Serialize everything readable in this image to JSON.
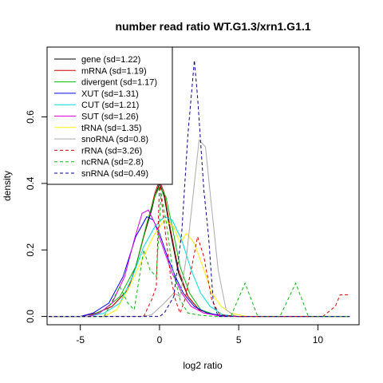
{
  "chart_data": {
    "type": "line",
    "title": "number read ratio WT.G1.3/xrn1.G1.1",
    "xlabel": "log2 ratio",
    "ylabel": "density",
    "xlim": [
      -7.1,
      12.6
    ],
    "ylim": [
      -0.025,
      0.81
    ],
    "xticks": [
      -5,
      0,
      5,
      10
    ],
    "yticks": [
      0.0,
      0.2,
      0.4,
      0.6
    ],
    "grid": false,
    "legend_position": "top-left",
    "series": [
      {
        "name": "gene (sd=1.22)",
        "color": "#000000",
        "dash": "solid",
        "points": [
          [
            -7,
            0
          ],
          [
            -5,
            0
          ],
          [
            -4,
            0.01
          ],
          [
            -3,
            0.03
          ],
          [
            -2,
            0.08
          ],
          [
            -1.5,
            0.15
          ],
          [
            -1,
            0.24
          ],
          [
            -0.5,
            0.32
          ],
          [
            -0.3,
            0.36
          ],
          [
            0,
            0.4
          ],
          [
            0.3,
            0.36
          ],
          [
            0.7,
            0.25
          ],
          [
            1.2,
            0.13
          ],
          [
            1.8,
            0.06
          ],
          [
            2.5,
            0.02
          ],
          [
            3.5,
            0.004
          ],
          [
            5,
            0
          ],
          [
            7,
            0
          ],
          [
            12,
            0
          ]
        ]
      },
      {
        "name": "mRNA (sd=1.19)",
        "color": "#cc0000",
        "dash": "solid",
        "points": [
          [
            -7,
            0
          ],
          [
            -5,
            0
          ],
          [
            -4,
            0.01
          ],
          [
            -3,
            0.03
          ],
          [
            -2,
            0.08
          ],
          [
            -1.5,
            0.15
          ],
          [
            -1,
            0.24
          ],
          [
            -0.5,
            0.33
          ],
          [
            -0.3,
            0.37
          ],
          [
            0,
            0.41
          ],
          [
            0.3,
            0.37
          ],
          [
            0.7,
            0.26
          ],
          [
            1.2,
            0.14
          ],
          [
            1.8,
            0.06
          ],
          [
            2.5,
            0.02
          ],
          [
            3.5,
            0.004
          ],
          [
            5,
            0
          ],
          [
            7,
            0
          ],
          [
            12,
            0
          ]
        ]
      },
      {
        "name": "divergent (sd=1.17)",
        "color": "#00bb00",
        "dash": "solid",
        "points": [
          [
            -7,
            0
          ],
          [
            -4.5,
            0
          ],
          [
            -3.5,
            0.02
          ],
          [
            -2.5,
            0.06
          ],
          [
            -1.5,
            0.15
          ],
          [
            -0.8,
            0.28
          ],
          [
            -0.3,
            0.36
          ],
          [
            0,
            0.39
          ],
          [
            0.4,
            0.36
          ],
          [
            0.8,
            0.27
          ],
          [
            1.3,
            0.15
          ],
          [
            1.9,
            0.07
          ],
          [
            2.6,
            0.02
          ],
          [
            3.5,
            0.005
          ],
          [
            5,
            0
          ],
          [
            7,
            0
          ],
          [
            12,
            0
          ]
        ]
      },
      {
        "name": "XUT (sd=1.31)",
        "color": "#0000ee",
        "dash": "solid",
        "points": [
          [
            -7,
            0
          ],
          [
            -5,
            0
          ],
          [
            -4.2,
            0.01
          ],
          [
            -3.2,
            0.04
          ],
          [
            -2.3,
            0.12
          ],
          [
            -1.5,
            0.24
          ],
          [
            -0.8,
            0.3
          ],
          [
            -0.4,
            0.29
          ],
          [
            0,
            0.25
          ],
          [
            0.5,
            0.18
          ],
          [
            1,
            0.12
          ],
          [
            1.5,
            0.07
          ],
          [
            2.2,
            0.03
          ],
          [
            3,
            0.01
          ],
          [
            4,
            0.002
          ],
          [
            5,
            0
          ],
          [
            7,
            0
          ],
          [
            12,
            0
          ]
        ]
      },
      {
        "name": "CUT (sd=1.21)",
        "color": "#00dddd",
        "dash": "solid",
        "points": [
          [
            -7,
            0
          ],
          [
            -4.5,
            0
          ],
          [
            -3.5,
            0.01
          ],
          [
            -2.5,
            0.04
          ],
          [
            -1.7,
            0.12
          ],
          [
            -1,
            0.21
          ],
          [
            -0.3,
            0.27
          ],
          [
            0.3,
            0.3
          ],
          [
            0.8,
            0.29
          ],
          [
            1.4,
            0.23
          ],
          [
            2,
            0.14
          ],
          [
            2.6,
            0.07
          ],
          [
            3.2,
            0.03
          ],
          [
            4,
            0.005
          ],
          [
            5,
            0
          ],
          [
            7,
            0
          ],
          [
            12,
            0
          ]
        ]
      },
      {
        "name": "SUT (sd=1.26)",
        "color": "#dd00dd",
        "dash": "solid",
        "points": [
          [
            -7,
            0
          ],
          [
            -4.5,
            0
          ],
          [
            -3.8,
            0.01
          ],
          [
            -3,
            0.04
          ],
          [
            -2.2,
            0.12
          ],
          [
            -1.6,
            0.23
          ],
          [
            -1.1,
            0.31
          ],
          [
            -0.7,
            0.32
          ],
          [
            -0.3,
            0.28
          ],
          [
            0.2,
            0.21
          ],
          [
            0.8,
            0.13
          ],
          [
            1.4,
            0.07
          ],
          [
            2,
            0.03
          ],
          [
            2.8,
            0.01
          ],
          [
            4,
            0
          ],
          [
            7,
            0
          ],
          [
            12,
            0
          ]
        ]
      },
      {
        "name": "tRNA (sd=1.35)",
        "color": "#ffee00",
        "dash": "solid",
        "points": [
          [
            -7,
            0
          ],
          [
            -3.5,
            0
          ],
          [
            -2.7,
            0.02
          ],
          [
            -2,
            0.08
          ],
          [
            -1.2,
            0.16
          ],
          [
            -0.4,
            0.24
          ],
          [
            0.3,
            0.29
          ],
          [
            0.9,
            0.27
          ],
          [
            1.3,
            0.22
          ],
          [
            1.7,
            0.25
          ],
          [
            2.2,
            0.22
          ],
          [
            2.8,
            0.14
          ],
          [
            3.3,
            0.07
          ],
          [
            3.9,
            0.03
          ],
          [
            4.5,
            0.01
          ],
          [
            5.5,
            0
          ],
          [
            7,
            0
          ],
          [
            12,
            0
          ]
        ]
      },
      {
        "name": "snoRNA (sd=0.8)",
        "color": "#aaaaaa",
        "dash": "solid",
        "points": [
          [
            -7,
            0
          ],
          [
            -1.2,
            0
          ],
          [
            -0.5,
            0.005
          ],
          [
            0.3,
            0.04
          ],
          [
            0.9,
            0.07
          ],
          [
            1.3,
            0.06
          ],
          [
            1.7,
            0.18
          ],
          [
            2.2,
            0.4
          ],
          [
            2.5,
            0.53
          ],
          [
            2.9,
            0.51
          ],
          [
            3.2,
            0.37
          ],
          [
            3.7,
            0.14
          ],
          [
            4.2,
            0.02
          ],
          [
            4.8,
            0
          ],
          [
            7,
            0
          ],
          [
            12,
            0
          ]
        ]
      },
      {
        "name": "rRNA (sd=3.26)",
        "color": "#dd0000",
        "dash": "dashed",
        "points": [
          [
            -7,
            0
          ],
          [
            -1,
            0
          ],
          [
            -0.5,
            0.05
          ],
          [
            -0.2,
            0.09
          ],
          [
            0,
            0.4
          ],
          [
            0.3,
            0.28
          ],
          [
            0.7,
            0.12
          ],
          [
            1,
            0.05
          ],
          [
            1.3,
            0.01
          ],
          [
            1.6,
            0.05
          ],
          [
            2,
            0.14
          ],
          [
            2.4,
            0.24
          ],
          [
            2.8,
            0.18
          ],
          [
            3.3,
            0.05
          ],
          [
            3.8,
            0.005
          ],
          [
            5,
            0
          ],
          [
            9,
            0
          ],
          [
            10.3,
            0
          ],
          [
            11.1,
            0.03
          ],
          [
            11.4,
            0.065
          ],
          [
            12,
            0.065
          ]
        ]
      },
      {
        "name": "ncRNA (sd=2.8)",
        "color": "#00bb00",
        "dash": "dashed",
        "points": [
          [
            -7,
            0
          ],
          [
            -3.5,
            0
          ],
          [
            -2.5,
            0.09
          ],
          [
            -2,
            0.04
          ],
          [
            -1.6,
            0.02
          ],
          [
            -1,
            0.2
          ],
          [
            -0.6,
            0.14
          ],
          [
            -0.2,
            0.12
          ],
          [
            0.1,
            0.37
          ],
          [
            0.4,
            0.29
          ],
          [
            0.8,
            0.15
          ],
          [
            1.3,
            0.05
          ],
          [
            1.8,
            0.01
          ],
          [
            2.5,
            0.004
          ],
          [
            3.5,
            0
          ],
          [
            4.5,
            0
          ],
          [
            5.4,
            0.1
          ],
          [
            6.2,
            0
          ],
          [
            7.6,
            0
          ],
          [
            8.6,
            0.1
          ],
          [
            9.4,
            0
          ],
          [
            12,
            0
          ]
        ]
      },
      {
        "name": "snRNA (sd=0.49)",
        "color": "#000099",
        "dash": "dashed",
        "points": [
          [
            -7,
            0
          ],
          [
            -0.5,
            0
          ],
          [
            0,
            0
          ],
          [
            0.3,
            0.01
          ],
          [
            0.9,
            0.06
          ],
          [
            1.4,
            0.25
          ],
          [
            1.8,
            0.55
          ],
          [
            2.2,
            0.77
          ],
          [
            2.4,
            0.66
          ],
          [
            2.8,
            0.38
          ],
          [
            3.1,
            0.24
          ],
          [
            3.4,
            0.04
          ],
          [
            3.7,
            0
          ],
          [
            7,
            0
          ],
          [
            12,
            0
          ]
        ]
      }
    ]
  }
}
